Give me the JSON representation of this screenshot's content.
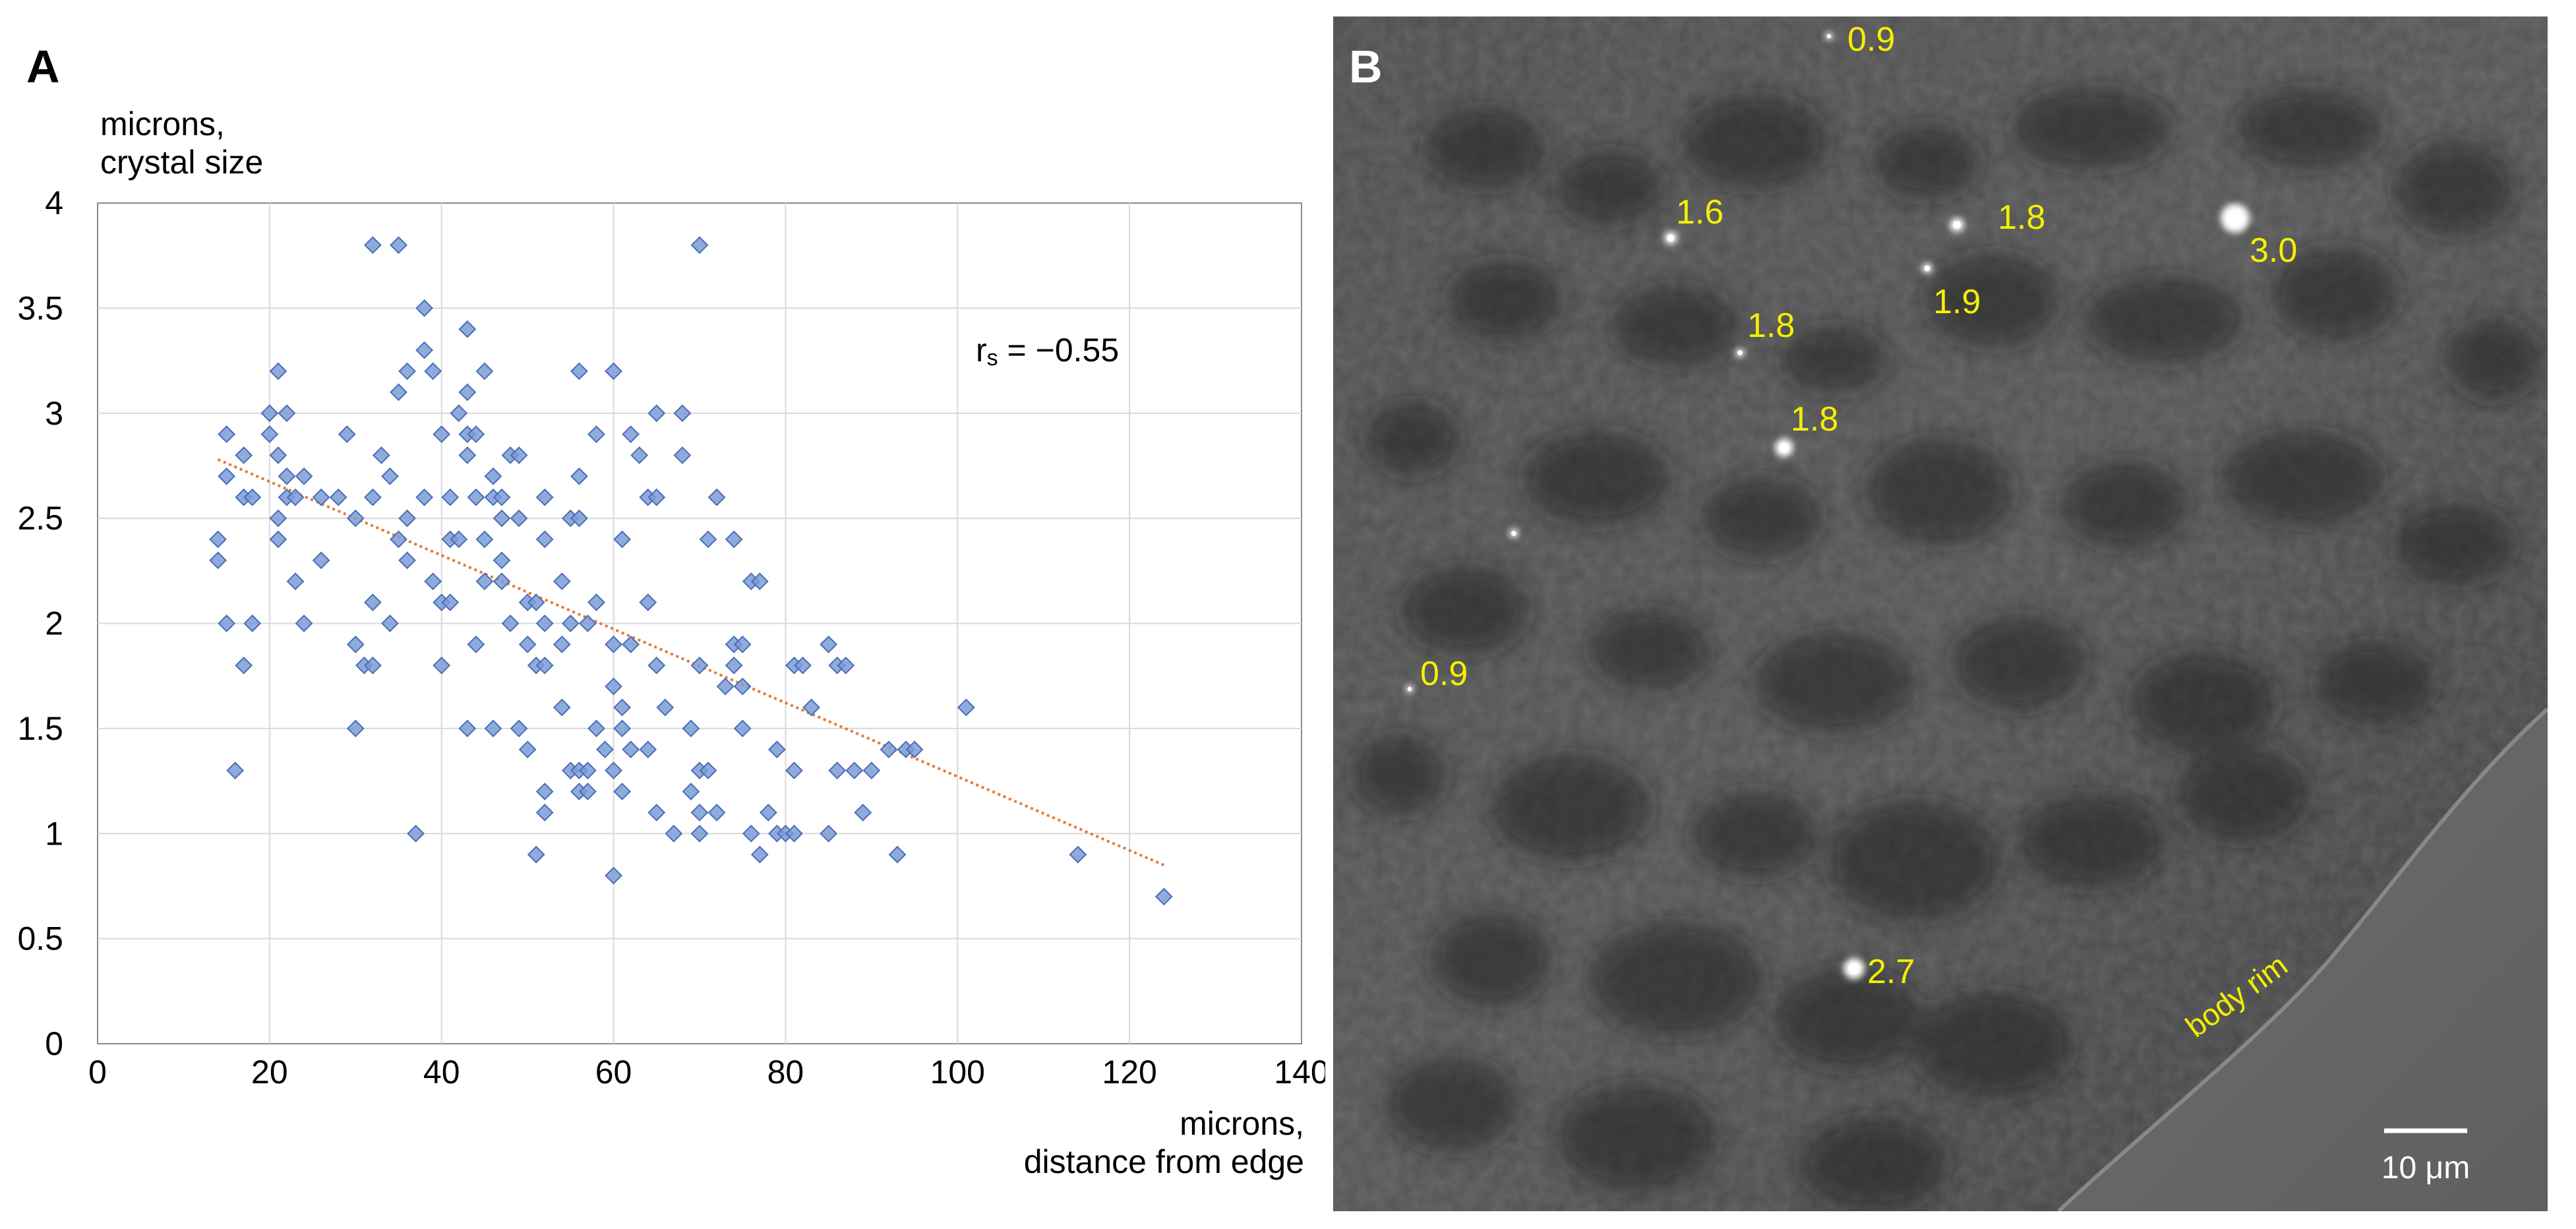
{
  "panel_a": {
    "letter": "A",
    "ylabel_line1": "microns,",
    "ylabel_line2": "crystal size",
    "xlabel_line1": "microns,",
    "xlabel_line2": "distance from edge",
    "stat_r": "r",
    "stat_s": "s",
    "stat_value": " = −0.55"
  },
  "chart_data": {
    "type": "scatter",
    "title": "",
    "xlabel": "microns, distance from edge",
    "ylabel": "microns, crystal size",
    "xlim": [
      0,
      140
    ],
    "ylim": [
      0,
      4
    ],
    "x_ticks": [
      0,
      20,
      40,
      60,
      80,
      100,
      120,
      140
    ],
    "y_ticks": [
      0,
      0.5,
      1,
      1.5,
      2,
      2.5,
      3,
      3.5,
      4
    ],
    "y_tick_labels": [
      "0",
      "0.5",
      "1",
      "1.5",
      "2",
      "2.5",
      "3",
      "3.5",
      "4"
    ],
    "grid": true,
    "annotation": "rs = −0.55",
    "trendline": {
      "type": "linear",
      "x0": 14,
      "y0": 2.78,
      "x1": 124,
      "y1": 0.85,
      "color": "#e07b39"
    },
    "marker_color": "#7b9bd6",
    "marker_edge_color": "#4a6fb5",
    "points": [
      [
        14,
        2.4
      ],
      [
        14,
        2.3
      ],
      [
        15,
        2.9
      ],
      [
        15,
        2.7
      ],
      [
        15,
        2.0
      ],
      [
        16,
        1.3
      ],
      [
        17,
        2.8
      ],
      [
        17,
        2.6
      ],
      [
        17,
        1.8
      ],
      [
        18,
        2.6
      ],
      [
        18,
        2.0
      ],
      [
        20,
        3.0
      ],
      [
        20,
        2.9
      ],
      [
        21,
        3.2
      ],
      [
        21,
        2.8
      ],
      [
        21,
        2.5
      ],
      [
        21,
        2.4
      ],
      [
        22,
        3.0
      ],
      [
        22,
        2.7
      ],
      [
        22,
        2.6
      ],
      [
        23,
        2.6
      ],
      [
        23,
        2.2
      ],
      [
        24,
        2.7
      ],
      [
        24,
        2.0
      ],
      [
        26,
        2.6
      ],
      [
        26,
        2.3
      ],
      [
        28,
        2.6
      ],
      [
        29,
        2.9
      ],
      [
        30,
        2.5
      ],
      [
        30,
        1.9
      ],
      [
        30,
        1.5
      ],
      [
        31,
        1.8
      ],
      [
        32,
        3.8
      ],
      [
        32,
        2.6
      ],
      [
        32,
        2.1
      ],
      [
        32,
        1.8
      ],
      [
        33,
        2.8
      ],
      [
        34,
        2.7
      ],
      [
        34,
        2.0
      ],
      [
        35,
        3.8
      ],
      [
        35,
        3.1
      ],
      [
        35,
        2.4
      ],
      [
        36,
        3.2
      ],
      [
        36,
        2.5
      ],
      [
        36,
        2.3
      ],
      [
        37,
        1.0
      ],
      [
        38,
        3.5
      ],
      [
        38,
        3.3
      ],
      [
        38,
        2.6
      ],
      [
        39,
        3.2
      ],
      [
        39,
        2.2
      ],
      [
        40,
        2.9
      ],
      [
        40,
        2.1
      ],
      [
        40,
        1.8
      ],
      [
        41,
        2.6
      ],
      [
        41,
        2.4
      ],
      [
        41,
        2.1
      ],
      [
        42,
        3.0
      ],
      [
        42,
        2.4
      ],
      [
        43,
        3.4
      ],
      [
        43,
        3.1
      ],
      [
        43,
        2.9
      ],
      [
        43,
        2.8
      ],
      [
        43,
        1.5
      ],
      [
        44,
        2.9
      ],
      [
        44,
        2.6
      ],
      [
        44,
        1.9
      ],
      [
        45,
        3.2
      ],
      [
        45,
        2.4
      ],
      [
        45,
        2.2
      ],
      [
        46,
        2.7
      ],
      [
        46,
        2.6
      ],
      [
        46,
        1.5
      ],
      [
        47,
        2.6
      ],
      [
        47,
        2.5
      ],
      [
        47,
        2.3
      ],
      [
        47,
        2.2
      ],
      [
        48,
        2.8
      ],
      [
        48,
        2.0
      ],
      [
        49,
        2.8
      ],
      [
        49,
        2.5
      ],
      [
        49,
        1.5
      ],
      [
        50,
        2.1
      ],
      [
        50,
        1.9
      ],
      [
        50,
        1.4
      ],
      [
        51,
        2.1
      ],
      [
        51,
        1.8
      ],
      [
        51,
        0.9
      ],
      [
        52,
        2.6
      ],
      [
        52,
        2.4
      ],
      [
        52,
        2.0
      ],
      [
        52,
        1.8
      ],
      [
        52,
        1.2
      ],
      [
        52,
        1.1
      ],
      [
        54,
        2.2
      ],
      [
        54,
        1.9
      ],
      [
        54,
        1.6
      ],
      [
        55,
        2.5
      ],
      [
        55,
        2.0
      ],
      [
        55,
        1.3
      ],
      [
        56,
        3.2
      ],
      [
        56,
        2.7
      ],
      [
        56,
        2.5
      ],
      [
        56,
        1.3
      ],
      [
        56,
        1.2
      ],
      [
        57,
        2.0
      ],
      [
        57,
        1.3
      ],
      [
        57,
        1.2
      ],
      [
        58,
        2.9
      ],
      [
        58,
        2.1
      ],
      [
        58,
        1.5
      ],
      [
        59,
        1.4
      ],
      [
        60,
        3.2
      ],
      [
        60,
        1.9
      ],
      [
        60,
        1.7
      ],
      [
        60,
        1.3
      ],
      [
        60,
        0.8
      ],
      [
        61,
        2.4
      ],
      [
        61,
        1.6
      ],
      [
        61,
        1.5
      ],
      [
        61,
        1.2
      ],
      [
        62,
        2.9
      ],
      [
        62,
        1.9
      ],
      [
        62,
        1.4
      ],
      [
        63,
        2.8
      ],
      [
        64,
        2.6
      ],
      [
        64,
        2.1
      ],
      [
        64,
        1.4
      ],
      [
        65,
        3.0
      ],
      [
        65,
        2.6
      ],
      [
        65,
        1.8
      ],
      [
        65,
        1.1
      ],
      [
        66,
        1.6
      ],
      [
        67,
        1.0
      ],
      [
        68,
        3.0
      ],
      [
        68,
        2.8
      ],
      [
        69,
        1.5
      ],
      [
        69,
        1.2
      ],
      [
        70,
        3.8
      ],
      [
        70,
        1.8
      ],
      [
        70,
        1.3
      ],
      [
        70,
        1.1
      ],
      [
        70,
        1.0
      ],
      [
        71,
        2.4
      ],
      [
        71,
        1.3
      ],
      [
        72,
        2.6
      ],
      [
        72,
        1.1
      ],
      [
        73,
        1.7
      ],
      [
        74,
        2.4
      ],
      [
        74,
        1.9
      ],
      [
        74,
        1.8
      ],
      [
        75,
        1.9
      ],
      [
        75,
        1.7
      ],
      [
        75,
        1.5
      ],
      [
        76,
        2.2
      ],
      [
        76,
        1.0
      ],
      [
        77,
        2.2
      ],
      [
        77,
        0.9
      ],
      [
        78,
        1.1
      ],
      [
        79,
        1.4
      ],
      [
        79,
        1.0
      ],
      [
        80,
        1.0
      ],
      [
        81,
        1.8
      ],
      [
        81,
        1.3
      ],
      [
        81,
        1.0
      ],
      [
        82,
        1.8
      ],
      [
        83,
        1.6
      ],
      [
        85,
        1.9
      ],
      [
        85,
        1.0
      ],
      [
        86,
        1.8
      ],
      [
        86,
        1.3
      ],
      [
        87,
        1.8
      ],
      [
        88,
        1.3
      ],
      [
        89,
        1.1
      ],
      [
        90,
        1.3
      ],
      [
        92,
        1.4
      ],
      [
        93,
        0.9
      ],
      [
        94,
        1.4
      ],
      [
        95,
        1.4
      ],
      [
        101,
        1.6
      ],
      [
        114,
        0.9
      ],
      [
        124,
        0.7
      ]
    ]
  },
  "panel_b": {
    "letter": "B",
    "labels": [
      {
        "text": "0.9",
        "kind": "crystal-size"
      },
      {
        "text": "1.6",
        "kind": "crystal-size"
      },
      {
        "text": "1.8",
        "kind": "crystal-size"
      },
      {
        "text": "1.9",
        "kind": "crystal-size"
      },
      {
        "text": "3.0",
        "kind": "crystal-size"
      },
      {
        "text": "1.8",
        "kind": "crystal-size"
      },
      {
        "text": "1.8",
        "kind": "crystal-size"
      },
      {
        "text": "0.9",
        "kind": "crystal-size"
      },
      {
        "text": "2.7",
        "kind": "crystal-size"
      }
    ],
    "rim_label": "body rim",
    "scale_bar": "10 μm",
    "label_color": "#f5f000"
  }
}
